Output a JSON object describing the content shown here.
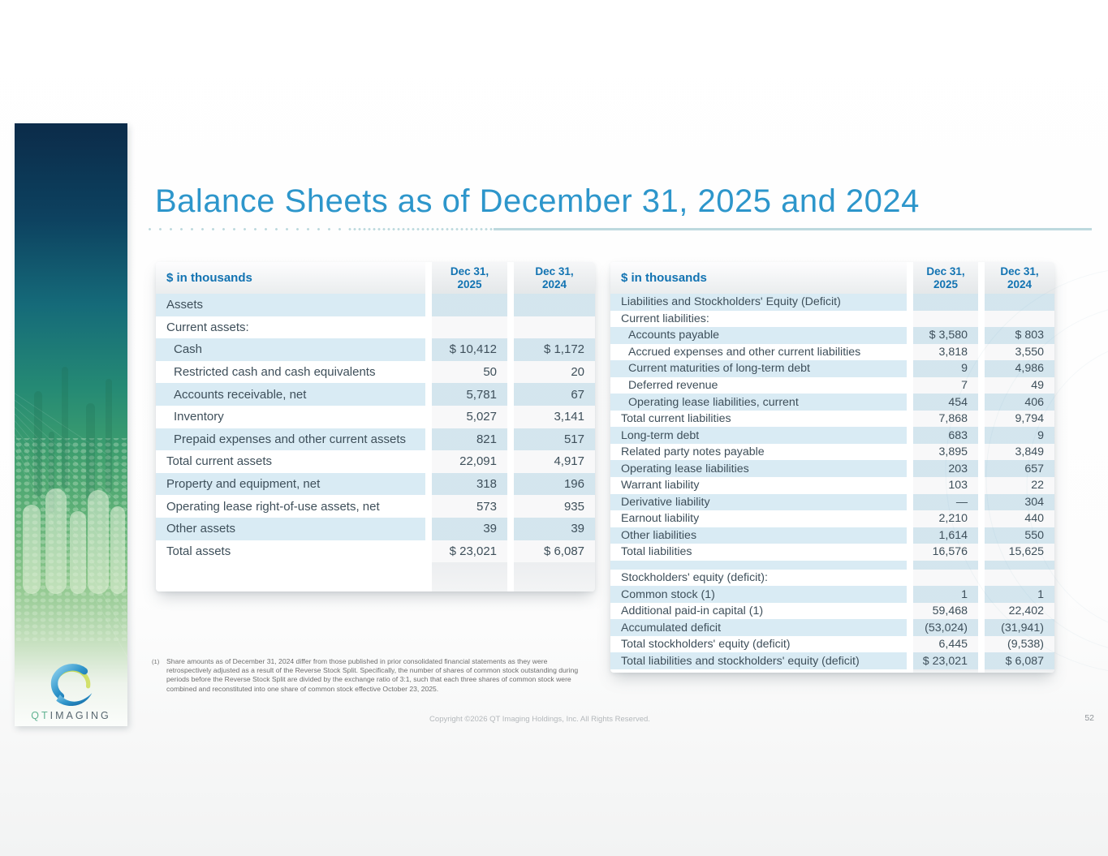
{
  "colors": {
    "title_blue": "#2d96cb",
    "header_blue": "#1273b2",
    "stripe": "#d9ebf4",
    "body_text": "#3e4f5a",
    "rule_blue": "#bdd9de",
    "logo_teal": "#62b392",
    "logo_gray": "#57666f"
  },
  "slide": {
    "title": "Balance Sheets as of December 31, 2025 and 2024",
    "page_number": "52",
    "copyright": "Copyright ©2026 QT Imaging Holdings, Inc. All Rights Reserved.",
    "footnote_marker": "(1)",
    "footnote": "Share amounts as of December 31, 2024 differ from those published in prior consolidated financial statements as they were retrospectively adjusted as a result of the Reverse Stock Split. Specifically, the number of shares of common stock outstanding during periods before the Reverse Stock Split are divided by the exchange ratio of 3:1, such that each three shares of common stock were combined and reconstituted into one share of common stock effective October 23, 2025.",
    "logo": {
      "qt": "QT",
      "imaging": "IMAGING"
    }
  },
  "left_table": {
    "unit_label": "$ in thousands",
    "col_headers": [
      {
        "line1": "Dec 31,",
        "line2": "2025"
      },
      {
        "line1": "Dec 31,",
        "line2": "2024"
      }
    ],
    "rows": [
      {
        "label": "Assets",
        "v2025": "",
        "v2024": ""
      },
      {
        "label": "Current assets:",
        "v2025": "",
        "v2024": ""
      },
      {
        "label": "Cash",
        "v2025": "$ 10,412",
        "v2024": "$ 1,172",
        "indent": true
      },
      {
        "label": "Restricted cash and cash equivalents",
        "v2025": "50",
        "v2024": "20",
        "indent": true
      },
      {
        "label": "Accounts receivable, net",
        "v2025": "5,781",
        "v2024": "67",
        "indent": true
      },
      {
        "label": "Inventory",
        "v2025": "5,027",
        "v2024": "3,141",
        "indent": true
      },
      {
        "label": "Prepaid expenses and other current assets",
        "v2025": "821",
        "v2024": "517",
        "indent": true
      },
      {
        "label": "Total current assets",
        "v2025": "22,091",
        "v2024": "4,917"
      },
      {
        "label": "Property and equipment, net",
        "v2025": "318",
        "v2024": "196"
      },
      {
        "label": "Operating lease right-of-use assets, net",
        "v2025": "573",
        "v2024": "935"
      },
      {
        "label": "Other assets",
        "v2025": "39",
        "v2024": "39"
      },
      {
        "label": "Total assets",
        "v2025": "$ 23,021",
        "v2024": "$ 6,087"
      }
    ]
  },
  "right_table": {
    "unit_label": "$ in thousands",
    "col_headers": [
      {
        "line1": "Dec 31,",
        "line2": "2025"
      },
      {
        "line1": "Dec 31,",
        "line2": "2024"
      }
    ],
    "rows": [
      {
        "label": "Liabilities and Stockholders' Equity (Deficit)",
        "v2025": "",
        "v2024": ""
      },
      {
        "label": "Current liabilities:",
        "v2025": "",
        "v2024": ""
      },
      {
        "label": "Accounts payable",
        "v2025": "$ 3,580",
        "v2024": "$ 803",
        "indent": true
      },
      {
        "label": "Accrued expenses and other current liabilities",
        "v2025": "3,818",
        "v2024": "3,550",
        "indent": true
      },
      {
        "label": "Current maturities of long-term debt",
        "v2025": "9",
        "v2024": "4,986",
        "indent": true
      },
      {
        "label": "Deferred revenue",
        "v2025": "7",
        "v2024": "49",
        "indent": true
      },
      {
        "label": "Operating lease liabilities, current",
        "v2025": "454",
        "v2024": "406",
        "indent": true
      },
      {
        "label": "Total current liabilities",
        "v2025": "7,868",
        "v2024": "9,794"
      },
      {
        "label": "Long-term debt",
        "v2025": "683",
        "v2024": "9"
      },
      {
        "label": "Related party notes payable",
        "v2025": "3,895",
        "v2024": "3,849"
      },
      {
        "label": "Operating lease liabilities",
        "v2025": "203",
        "v2024": "657"
      },
      {
        "label": "Warrant liability",
        "v2025": "103",
        "v2024": "22"
      },
      {
        "label": "Derivative liability",
        "v2025": "—",
        "v2024": "304"
      },
      {
        "label": "Earnout liability",
        "v2025": "2,210",
        "v2024": "440"
      },
      {
        "label": "Other liabilities",
        "v2025": "1,614",
        "v2024": "550"
      },
      {
        "label": "Total liabilities",
        "v2025": "16,576",
        "v2024": "15,625"
      },
      {
        "spacer": true
      },
      {
        "label": "Stockholders' equity (deficit):",
        "v2025": "",
        "v2024": ""
      },
      {
        "label": "Common stock (1)",
        "v2025": "1",
        "v2024": "1"
      },
      {
        "label": "Additional paid-in capital (1)",
        "v2025": "59,468",
        "v2024": "22,402"
      },
      {
        "label": "Accumulated deficit",
        "v2025": "(53,024)",
        "v2024": "(31,941)"
      },
      {
        "label": "Total stockholders' equity (deficit)",
        "v2025": "6,445",
        "v2024": "(9,538)"
      },
      {
        "label": "Total liabilities and stockholders' equity (deficit)",
        "v2025": "$ 23,021",
        "v2024": "$ 6,087"
      }
    ]
  }
}
